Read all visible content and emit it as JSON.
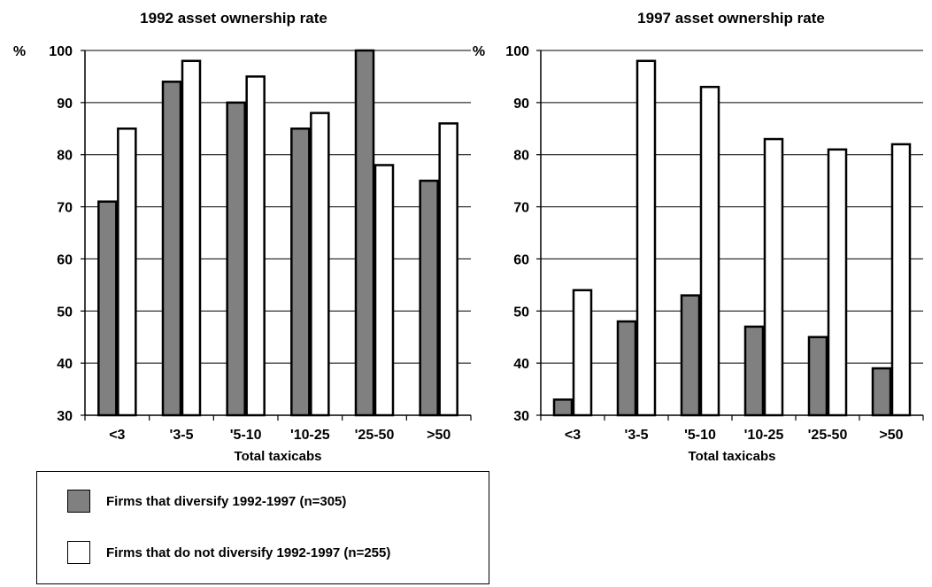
{
  "chart_data": [
    {
      "type": "bar",
      "title": "1992 asset ownership rate",
      "xlabel": "Total taxicabs",
      "ylabel": "%",
      "ylim": [
        30,
        100
      ],
      "yticks": [
        30,
        40,
        50,
        60,
        70,
        80,
        90,
        100
      ],
      "grid": true,
      "categories": [
        "<3",
        "'3-5",
        "'5-10",
        "'10-25",
        "'25-50",
        ">50"
      ],
      "series": [
        {
          "name": "Firms that diversify 1992-1997 (n=305)",
          "color": "#808080",
          "values": [
            71,
            94,
            90,
            85,
            100,
            75
          ]
        },
        {
          "name": "Firms that do not diversify 1992-1997 (n=255)",
          "color": "#ffffff",
          "values": [
            85,
            98,
            95,
            88,
            78,
            86
          ]
        }
      ]
    },
    {
      "type": "bar",
      "title": "1997 asset ownership rate",
      "xlabel": "Total taxicabs",
      "ylabel": "%",
      "ylim": [
        30,
        100
      ],
      "yticks": [
        30,
        40,
        50,
        60,
        70,
        80,
        90,
        100
      ],
      "grid": true,
      "categories": [
        "<3",
        "'3-5",
        "'5-10",
        "'10-25",
        "'25-50",
        ">50"
      ],
      "series": [
        {
          "name": "Firms that diversify 1992-1997 (n=305)",
          "color": "#808080",
          "values": [
            33,
            48,
            53,
            47,
            45,
            39
          ]
        },
        {
          "name": "Firms that do not diversify 1992-1997 (n=255)",
          "color": "#ffffff",
          "values": [
            54,
            98,
            93,
            83,
            81,
            82
          ]
        }
      ]
    }
  ],
  "legend": {
    "position": "bottom-left",
    "items": [
      {
        "label": "Firms that diversify 1992-1997 (n=305)",
        "color": "#808080"
      },
      {
        "label": "Firms that do not diversify 1992-1997 (n=255)",
        "color": "#ffffff"
      }
    ]
  }
}
